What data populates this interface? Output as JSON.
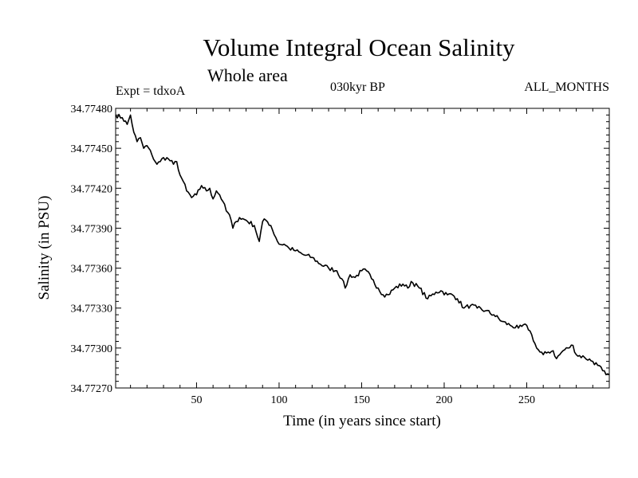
{
  "header": {
    "title": "Volume Integral Ocean Salinity",
    "subtitle": "Whole area",
    "experiment": "Expt = tdxoA",
    "period": "030kyr BP",
    "months": "ALL_MONTHS"
  },
  "chart_data": {
    "type": "line",
    "title": "Volume Integral Ocean Salinity",
    "xlabel": "Time (in years since start)",
    "ylabel": "Salinity (in PSU)",
    "xlim": [
      1,
      300
    ],
    "ylim": [
      34.7727,
      34.7748
    ],
    "xticks": [
      50,
      100,
      150,
      200,
      250
    ],
    "yticks": [
      "34.77270",
      "34.77300",
      "34.77330",
      "34.77360",
      "34.77390",
      "34.77420",
      "34.77450",
      "34.77480"
    ],
    "series": [
      {
        "name": "Salinity",
        "color": "#000000",
        "x": [
          1,
          5,
          8,
          10,
          12,
          14,
          16,
          18,
          20,
          23,
          26,
          28,
          30,
          33,
          36,
          38,
          40,
          42,
          44,
          47,
          50,
          53,
          56,
          58,
          60,
          62,
          64,
          66,
          68,
          70,
          72,
          74,
          76,
          80,
          85,
          88,
          90,
          92,
          95,
          98,
          100,
          103,
          106,
          110,
          115,
          120,
          125,
          130,
          135,
          138,
          140,
          143,
          146,
          150,
          153,
          156,
          160,
          163,
          166,
          170,
          175,
          178,
          180,
          185,
          190,
          195,
          198,
          202,
          205,
          208,
          212,
          216,
          220,
          225,
          230,
          235,
          240,
          245,
          250,
          253,
          256,
          258,
          260,
          263,
          266,
          268,
          272,
          275,
          278,
          280,
          285,
          290,
          293,
          296,
          298,
          300
        ],
        "values": [
          34.77475,
          34.77473,
          34.77468,
          34.77475,
          34.77462,
          34.77455,
          34.77458,
          34.7745,
          34.77452,
          34.77445,
          34.77438,
          34.7744,
          34.77443,
          34.77442,
          34.77438,
          34.7744,
          34.7743,
          34.77425,
          34.77418,
          34.77413,
          34.77415,
          34.77422,
          34.77418,
          34.7742,
          34.77412,
          34.77418,
          34.77415,
          34.7741,
          34.77403,
          34.774,
          34.7739,
          34.77395,
          34.77398,
          34.77396,
          34.77392,
          34.7738,
          34.77395,
          34.77396,
          34.77392,
          34.77383,
          34.77378,
          34.77378,
          34.77375,
          34.77373,
          34.7737,
          34.77368,
          34.77363,
          34.7736,
          34.77358,
          34.77352,
          34.77345,
          34.77355,
          34.77353,
          34.77358,
          34.77358,
          34.77352,
          34.77345,
          34.7734,
          34.7734,
          34.77345,
          34.77348,
          34.77345,
          34.7735,
          34.77345,
          34.77337,
          34.77342,
          34.77343,
          34.7734,
          34.7734,
          34.77337,
          34.7733,
          34.77332,
          34.7733,
          34.77328,
          34.77325,
          34.7732,
          34.77317,
          34.77315,
          34.77317,
          34.7731,
          34.773,
          34.77297,
          34.77295,
          34.77297,
          34.77298,
          34.77292,
          34.77298,
          34.773,
          34.77302,
          34.77295,
          34.77293,
          34.7729,
          34.77287,
          34.77283,
          34.7728,
          34.7728
        ]
      }
    ]
  }
}
